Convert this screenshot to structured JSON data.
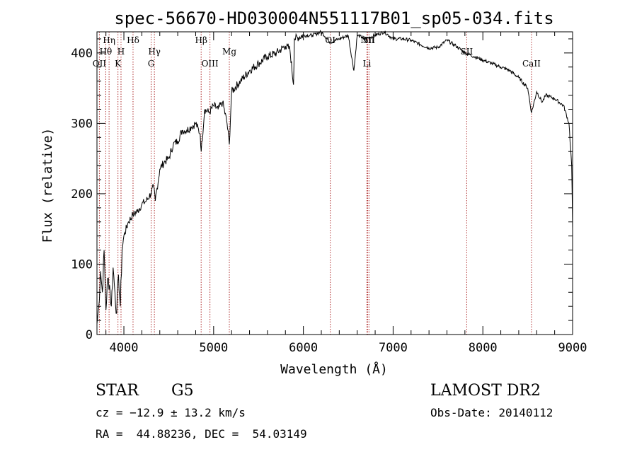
{
  "chart_data": {
    "type": "line",
    "title": "spec-56670-HD030004N551117B01_sp05-034.fits",
    "xlabel": "Wavelength (Å)",
    "ylabel": "Flux (relative)",
    "xlim": [
      3700,
      9000
    ],
    "ylim": [
      0,
      430
    ],
    "x_ticks": [
      4000,
      5000,
      6000,
      7000,
      8000,
      9000
    ],
    "y_ticks": [
      0,
      100,
      200,
      300,
      400
    ],
    "line_color": "#000000",
    "marker_color": "#b03030",
    "spectrum": {
      "x": [
        3700,
        3720,
        3740,
        3760,
        3780,
        3800,
        3820,
        3840,
        3860,
        3880,
        3900,
        3920,
        3940,
        3960,
        3980,
        4000,
        4050,
        4100,
        4150,
        4200,
        4250,
        4300,
        4330,
        4350,
        4400,
        4450,
        4500,
        4550,
        4600,
        4650,
        4700,
        4750,
        4800,
        4850,
        4862,
        4900,
        4950,
        5000,
        5050,
        5100,
        5150,
        5175,
        5200,
        5300,
        5400,
        5500,
        5600,
        5700,
        5800,
        5850,
        5890,
        5900,
        6000,
        6100,
        6200,
        6300,
        6400,
        6500,
        6563,
        6600,
        6700,
        6800,
        6900,
        7000,
        7100,
        7200,
        7300,
        7400,
        7500,
        7600,
        7700,
        7800,
        7900,
        8000,
        8100,
        8200,
        8300,
        8400,
        8500,
        8542,
        8600,
        8662,
        8700,
        8800,
        8900,
        8960,
        8990,
        9000
      ],
      "y": [
        15,
        40,
        90,
        60,
        120,
        35,
        80,
        70,
        40,
        95,
        60,
        30,
        85,
        40,
        120,
        140,
        160,
        170,
        175,
        185,
        190,
        200,
        210,
        190,
        235,
        245,
        250,
        270,
        275,
        290,
        290,
        295,
        300,
        285,
        260,
        320,
        315,
        325,
        320,
        330,
        300,
        270,
        345,
        360,
        375,
        385,
        395,
        400,
        410,
        405,
        355,
        420,
        425,
        425,
        430,
        415,
        420,
        425,
        375,
        425,
        420,
        425,
        430,
        420,
        420,
        418,
        412,
        407,
        408,
        418,
        410,
        400,
        395,
        390,
        385,
        380,
        375,
        365,
        350,
        315,
        345,
        330,
        340,
        335,
        325,
        300,
        240,
        150
      ]
    },
    "lines": [
      {
        "label": "OII",
        "x": 3727,
        "row": 3
      },
      {
        "label": "Hθ",
        "x": 3798,
        "row": 2
      },
      {
        "label": "Hη",
        "x": 3835,
        "row": 1
      },
      {
        "label": "K",
        "x": 3934,
        "row": 3
      },
      {
        "label": "H",
        "x": 3968,
        "row": 2
      },
      {
        "label": "Hδ",
        "x": 4102,
        "row": 1
      },
      {
        "label": "G",
        "x": 4304,
        "row": 3
      },
      {
        "label": "Hγ",
        "x": 4340,
        "row": 2
      },
      {
        "label": "Hβ",
        "x": 4861,
        "row": 1
      },
      {
        "label": "OIII",
        "x": 4959,
        "row": 3
      },
      {
        "label": "Mg",
        "x": 5175,
        "row": 2
      },
      {
        "label": "OI",
        "x": 6300,
        "row": 1
      },
      {
        "label": "NII",
        "x": 6716,
        "row": 1
      },
      {
        "label": "Li",
        "x": 6708,
        "row": 3
      },
      {
        "label": "SII",
        "x": 6731,
        "row": 1
      },
      {
        "label": "SII",
        "x": 7820,
        "row": 2
      },
      {
        "label": "CaII",
        "x": 8542,
        "row": 3
      }
    ]
  },
  "info": {
    "class": "STAR",
    "subclass": "G5",
    "survey": "LAMOST DR2",
    "cz": "cz = −12.9 ± 13.2 km/s",
    "obs_date": "Obs-Date: 20140112",
    "radec": "RA =  44.88236, DEC =  54.03149"
  }
}
